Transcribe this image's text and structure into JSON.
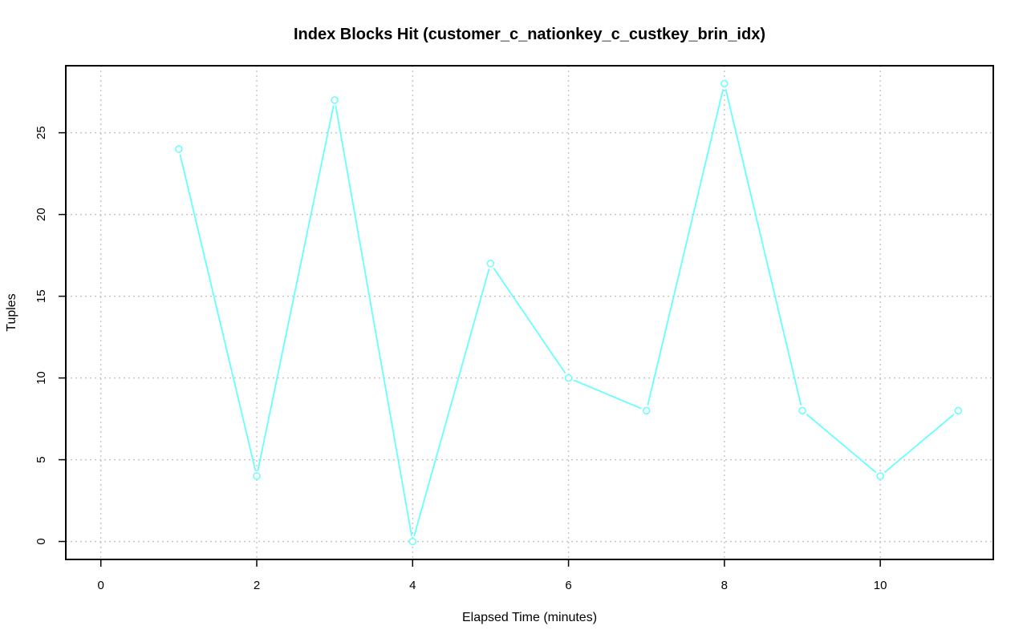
{
  "chart_data": {
    "type": "line",
    "title": "Index Blocks Hit (customer_c_nationkey_c_custkey_brin_idx)",
    "xlabel": "Elapsed Time (minutes)",
    "ylabel": "Tuples",
    "xlim": [
      -0.45,
      11.45
    ],
    "ylim": [
      -1.1,
      29.1
    ],
    "xticks": [
      0,
      2,
      4,
      6,
      8,
      10
    ],
    "yticks": [
      0,
      5,
      10,
      15,
      20,
      25
    ],
    "grid": true,
    "series": [
      {
        "color": "#66ffff",
        "marker": "open-circle",
        "x": [
          1,
          2,
          3,
          4,
          5,
          6,
          7,
          8,
          9,
          10,
          11
        ],
        "y": [
          24,
          4,
          27,
          0,
          17,
          10,
          8,
          28,
          8,
          4,
          8
        ]
      }
    ]
  }
}
